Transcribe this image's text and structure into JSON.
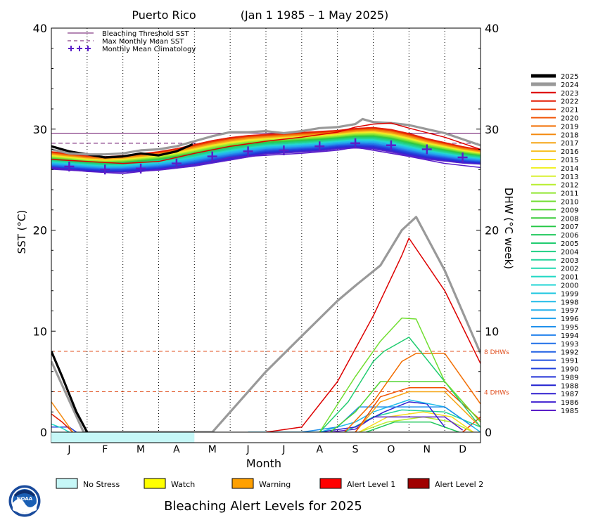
{
  "chart_data": {
    "type": "line",
    "title": "Puerto Rico",
    "date_range": "(Jan 1 1985 – 1 May 2025)",
    "xlabel": "Month",
    "ylabel_left": "SST (°C)",
    "ylabel_right": "DHW (°C week)",
    "x_ticks": [
      "J",
      "F",
      "M",
      "A",
      "M",
      "J",
      "J",
      "A",
      "S",
      "O",
      "N",
      "D"
    ],
    "y_ticks": [
      "0",
      "10",
      "20",
      "30",
      "40"
    ],
    "ylim": [
      0,
      40
    ],
    "grid": "vertical dotted at month boundaries",
    "legend_top": [
      {
        "label": "Bleaching Threshold SST",
        "style": "solid",
        "color": "#6a0f6a"
      },
      {
        "label": "Max Monthly Mean SST",
        "style": "dashed",
        "color": "#6a0f6a"
      },
      {
        "label": "Monthly Mean Climatology",
        "style": "plus",
        "color": "#5a1ec8"
      }
    ],
    "bleaching_threshold": 29.6,
    "max_monthly_mean": 28.6,
    "climatology": {
      "months": [
        0.5,
        1.5,
        2.5,
        3.5,
        4.5,
        5.5,
        6.5,
        7.5,
        8.5,
        9.5,
        10.5,
        11.5
      ],
      "values": [
        26.3,
        26.0,
        26.1,
        26.6,
        27.3,
        27.8,
        27.9,
        28.3,
        28.6,
        28.4,
        28.0,
        27.2
      ]
    },
    "dhw_reference_lines": [
      {
        "label": "8 DHWs",
        "value": 8
      },
      {
        "label": "4 DHWs",
        "value": 4
      }
    ],
    "series_years": [
      "2025",
      "2024",
      "2023",
      "2022",
      "2021",
      "2020",
      "2019",
      "2018",
      "2017",
      "2016",
      "2015",
      "2014",
      "2013",
      "2012",
      "2011",
      "2010",
      "2009",
      "2008",
      "2007",
      "2006",
      "2005",
      "2004",
      "2003",
      "2002",
      "2001",
      "2000",
      "1999",
      "1998",
      "1997",
      "1996",
      "1995",
      "1994",
      "1993",
      "1992",
      "1991",
      "1990",
      "1989",
      "1988",
      "1987",
      "1986",
      "1985"
    ],
    "series_colors": [
      "#000000",
      "#999999",
      "#dd0000",
      "#e41a00",
      "#ea3400",
      "#f05000",
      "#f26d00",
      "#f48a10",
      "#f6a515",
      "#f8c020",
      "#f8dc20",
      "#f0f020",
      "#d8f030",
      "#b8ee30",
      "#90e630",
      "#70de30",
      "#50d430",
      "#38cc38",
      "#28c848",
      "#20c85c",
      "#20cc70",
      "#20d084",
      "#20d49a",
      "#20d8b0",
      "#20d8c4",
      "#20d4d4",
      "#20c8e0",
      "#20bce8",
      "#20b0ec",
      "#20a0ec",
      "#2090ec",
      "#2080ec",
      "#2070e8",
      "#2060e4",
      "#2050e0",
      "#2040dc",
      "#2030d8",
      "#2020d0",
      "#3020d0",
      "#4020d0",
      "#5a1ec8"
    ],
    "dhw_series": [
      {
        "year": "2025",
        "x": [
          0,
          0.3,
          0.7,
          1.0
        ],
        "y": [
          8.0,
          5.5,
          2.0,
          0
        ]
      },
      {
        "year": "2024",
        "x": [
          0,
          0.9,
          4.5,
          5.0,
          6.0,
          7.0,
          8.0,
          8.5,
          9.2,
          9.8,
          10.2,
          11.0,
          12.0
        ],
        "y": [
          7.0,
          0,
          0,
          2.0,
          6.0,
          9.5,
          13.0,
          14.5,
          16.5,
          20.0,
          21.3,
          16.0,
          7.8
        ]
      },
      {
        "year": "2023",
        "x": [
          6.0,
          7.0,
          8.0,
          9.0,
          9.8,
          10.0,
          11.0,
          12.0
        ],
        "y": [
          0,
          0.5,
          5.0,
          11.5,
          17.5,
          19.2,
          14.0,
          6.8
        ]
      },
      {
        "year": "2010",
        "x": [
          7.5,
          8.5,
          9.2,
          9.8,
          10.2,
          11.0,
          12.0
        ],
        "y": [
          0,
          5.5,
          9.0,
          11.3,
          11.2,
          5.0,
          1.0
        ]
      },
      {
        "year": "2005",
        "x": [
          7.5,
          8.3,
          9.0,
          9.3,
          9.8,
          10.0,
          11.0,
          12.0
        ],
        "y": [
          0,
          3.0,
          7.0,
          8.0,
          9.0,
          9.4,
          5.0,
          0.5
        ]
      },
      {
        "year": "2019",
        "x": [
          8.2,
          9.0,
          9.8,
          10.2,
          11.0,
          12.0
        ],
        "y": [
          0,
          3.0,
          7.0,
          7.8,
          7.8,
          2.8
        ]
      },
      {
        "year": "2009",
        "x": [
          7.8,
          8.5,
          9.2,
          10.0,
          11.0,
          12.0
        ],
        "y": [
          0,
          2.0,
          5.0,
          5.0,
          5.0,
          1.0
        ]
      },
      {
        "year": "2020",
        "x": [
          8.5,
          9.2,
          10.0,
          11.0,
          12.0
        ],
        "y": [
          0,
          3.5,
          4.4,
          4.4,
          1.2
        ]
      },
      {
        "year": "2017",
        "x": [
          8.5,
          9.2,
          10.0,
          11.0,
          12.0
        ],
        "y": [
          0,
          3.0,
          4.0,
          4.0,
          0.5
        ]
      },
      {
        "year": "1995",
        "x": [
          7.0,
          8.0,
          8.6,
          9.0,
          10.0,
          11.0,
          11.8
        ],
        "y": [
          0,
          0.5,
          2.5,
          2.5,
          2.5,
          2.5,
          0.5
        ]
      },
      {
        "year": "1998",
        "x": [
          5.5,
          7.5,
          8.5,
          9.0,
          10.0,
          11.0,
          12.0
        ],
        "y": [
          0,
          0,
          1.0,
          2.0,
          3.2,
          2.5,
          0
        ]
      },
      {
        "year": "1987",
        "x": [
          7.5,
          8.5,
          9.3,
          10.0,
          10.5,
          11.0
        ],
        "y": [
          0,
          0.5,
          2.0,
          3.0,
          2.8,
          0.5
        ]
      },
      {
        "year": "2003",
        "x": [
          8.2,
          9.0,
          9.8,
          11.0,
          12.0
        ],
        "y": [
          0,
          1.5,
          2.2,
          2.0,
          0.5
        ]
      },
      {
        "year": "1985",
        "x": [
          7.8,
          8.5,
          9.0,
          11.0,
          11.5
        ],
        "y": [
          0,
          0.3,
          1.5,
          1.5,
          0.2
        ]
      },
      {
        "year": "2015",
        "x": [
          8.6,
          9.4,
          10.4,
          11.2,
          11.8
        ],
        "y": [
          0,
          1.5,
          2.0,
          1.5,
          0
        ]
      },
      {
        "year": "2012",
        "x": [
          8.6,
          9.4,
          10.4,
          11.2,
          11.8
        ],
        "y": [
          0,
          1.0,
          1.5,
          1.0,
          0
        ]
      },
      {
        "year": "2006",
        "x": [
          8.8,
          9.6,
          10.6,
          11.4
        ],
        "y": [
          0,
          1.0,
          1.0,
          0
        ]
      },
      {
        "year": "2018",
        "x": [
          0,
          0.3,
          0.6
        ],
        "y": [
          3.0,
          1.5,
          0
        ]
      },
      {
        "year": "2022",
        "x": [
          0,
          0.3,
          0.6
        ],
        "y": [
          1.8,
          1.0,
          0
        ]
      },
      {
        "year": "2001",
        "x": [
          0,
          0.3,
          0.5
        ],
        "y": [
          0.8,
          0.4,
          0
        ]
      },
      {
        "year": "1990",
        "x": [
          0,
          0.5,
          0.7
        ],
        "y": [
          0.5,
          0.5,
          0
        ]
      },
      {
        "year": "2021",
        "x": [
          11.5,
          12.0
        ],
        "y": [
          0,
          1.5
        ]
      }
    ],
    "sst_band": {
      "x": [
        0,
        0.5,
        1.0,
        1.5,
        2.0,
        2.5,
        3.0,
        3.5,
        4.0,
        4.5,
        5.0,
        5.5,
        6.0,
        6.5,
        7.0,
        7.5,
        8.0,
        8.5,
        9.0,
        9.5,
        10.0,
        10.5,
        11.0,
        11.5,
        12.0
      ],
      "low": [
        26.0,
        25.9,
        25.8,
        25.7,
        25.7,
        25.8,
        25.9,
        26.1,
        26.3,
        26.6,
        26.9,
        27.2,
        27.5,
        27.6,
        27.7,
        27.8,
        28.0,
        28.1,
        28.0,
        27.7,
        27.3,
        27.0,
        26.8,
        26.6,
        26.5
      ],
      "high": [
        27.8,
        27.6,
        27.4,
        27.3,
        27.4,
        27.6,
        27.8,
        28.1,
        28.5,
        28.9,
        29.2,
        29.4,
        29.5,
        29.6,
        29.7,
        29.8,
        29.9,
        30.1,
        30.2,
        30.0,
        29.6,
        29.1,
        28.7,
        28.3,
        28.0
      ]
    },
    "sst_series": [
      {
        "year": "2025",
        "x": [
          0,
          0.5,
          1.0,
          1.5,
          2.0,
          2.5,
          3.0,
          3.5,
          3.95
        ],
        "y": [
          28.3,
          27.8,
          27.5,
          27.2,
          27.3,
          27.6,
          27.4,
          27.8,
          28.5
        ]
      },
      {
        "year": "2024",
        "x": [
          0,
          0.5,
          1.0,
          1.5,
          2.0,
          2.5,
          3.0,
          3.5,
          4.0,
          4.5,
          5.0,
          5.5,
          6.0,
          6.5,
          7.0,
          7.5,
          8.0,
          8.5,
          8.7,
          9.0,
          9.5,
          10.0,
          10.5,
          11.0,
          11.5,
          12.0
        ],
        "y": [
          28.0,
          27.6,
          27.5,
          27.5,
          27.6,
          27.9,
          28.0,
          28.3,
          28.8,
          29.3,
          29.7,
          29.7,
          29.8,
          29.6,
          29.8,
          30.1,
          30.2,
          30.5,
          31.0,
          30.7,
          30.6,
          30.4,
          30.0,
          29.6,
          29.0,
          28.4
        ]
      },
      {
        "year": "2023",
        "x": [
          0,
          1.0,
          2.0,
          3.0,
          4.0,
          5.0,
          6.0,
          7.0,
          8.0,
          8.5,
          9.0,
          9.5,
          10.0,
          11.0,
          12.0
        ],
        "y": [
          27.0,
          26.8,
          26.6,
          26.8,
          27.6,
          28.3,
          28.8,
          29.2,
          29.7,
          30.2,
          30.5,
          30.6,
          30.1,
          29.2,
          28.0
        ]
      },
      {
        "year": "1985",
        "x": [
          0,
          1.0,
          2.0,
          3.0,
          4.0,
          4.5,
          5.0,
          6.0,
          7.0,
          8.0,
          8.5,
          9.0,
          10.0,
          11.0,
          12.0
        ],
        "y": [
          26.2,
          25.8,
          25.6,
          26.0,
          26.5,
          26.8,
          27.2,
          27.4,
          27.6,
          27.9,
          28.2,
          27.9,
          27.3,
          26.6,
          26.2
        ]
      }
    ],
    "alert_bar": [
      {
        "level": "No Stress",
        "from_month": 0,
        "to_month": 4
      }
    ]
  },
  "alert_legend": [
    {
      "label": "No Stress",
      "color": "#c6f7f7"
    },
    {
      "label": "Watch",
      "color": "#ffff00"
    },
    {
      "label": "Warning",
      "color": "#ffa000"
    },
    {
      "label": "Alert Level 1",
      "color": "#ff0000"
    },
    {
      "label": "Alert Level 2",
      "color": "#a00000"
    }
  ],
  "footer_title": "Bleaching Alert Levels for 2025",
  "logo_text": "NOAA"
}
